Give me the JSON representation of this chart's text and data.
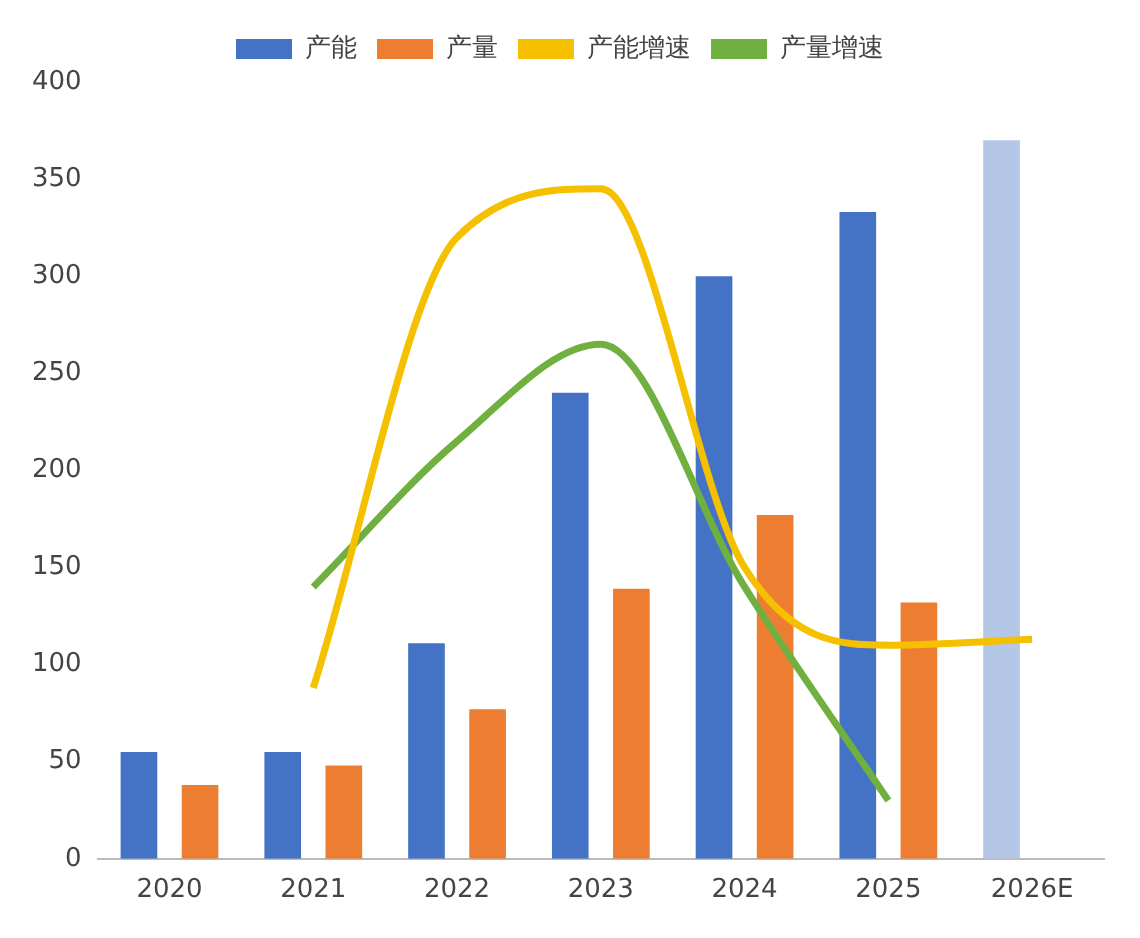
{
  "chart_data": {
    "type": "bar",
    "categories": [
      "2020",
      "2021",
      "2022",
      "2023",
      "2024",
      "2025",
      "2026E"
    ],
    "series": [
      {
        "name": "产能",
        "color": "#4472c4",
        "colors": [
          "#4472c4",
          "#4472c4",
          "#4472c4",
          "#4472c4",
          "#4472c4",
          "#4472c4",
          "#b4c7e7"
        ],
        "values": [
          55,
          55,
          111,
          240,
          300,
          333,
          370
        ]
      },
      {
        "name": "产量",
        "color": "#ed7d31",
        "values": [
          38,
          48,
          77,
          139,
          177,
          132,
          null
        ]
      },
      {
        "name": "产能增速",
        "type": "line",
        "color": "#f5c000",
        "values": [
          null,
          88,
          320,
          345,
          150,
          110,
          113
        ]
      },
      {
        "name": "产量增速",
        "type": "line",
        "color": "#70b040",
        "values": [
          null,
          140,
          215,
          265,
          140,
          30,
          null
        ]
      }
    ],
    "ylim": [
      0,
      400
    ],
    "yticks": [
      0,
      50,
      100,
      150,
      200,
      250,
      300,
      350,
      400
    ],
    "grid": false,
    "legend": "top",
    "marker": "none"
  }
}
